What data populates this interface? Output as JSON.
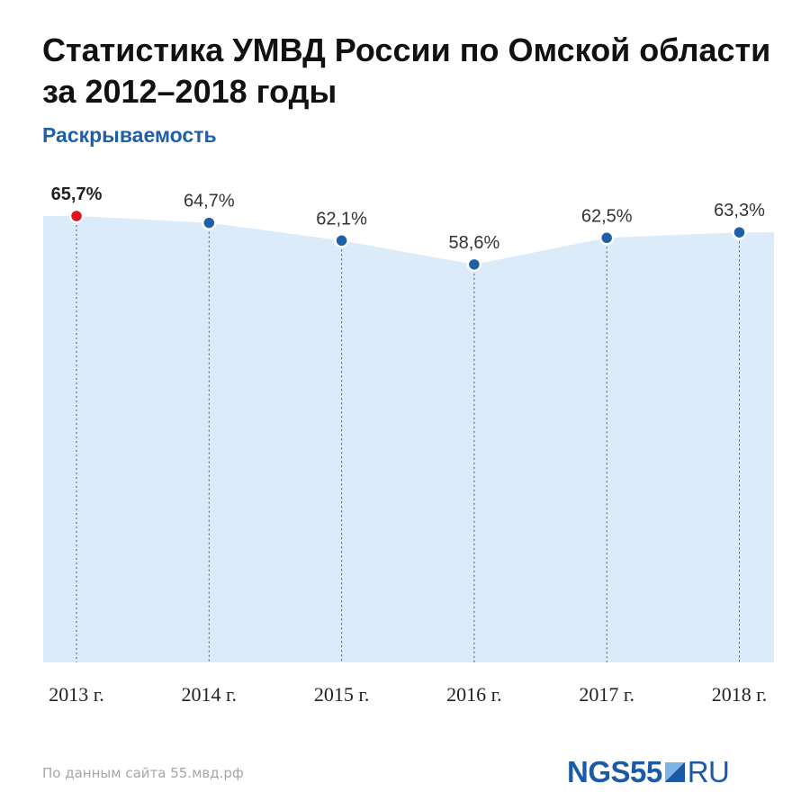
{
  "title": "Статистика УМВД России по Омской области за 2012–2018 годы",
  "subtitle": "Раскрываемость",
  "source": "По данным сайта 55.мвд.рф",
  "logo": {
    "brand": "NGS55",
    "domain": "RU"
  },
  "colors": {
    "area_fill": "#dcebfa",
    "point": "#1f5fa8",
    "highlight_point": "#e0141e",
    "guide": "#555555",
    "label": "#333333"
  },
  "chart_data": {
    "type": "area",
    "categories": [
      "2013 г.",
      "2014 г.",
      "2015 г.",
      "2016 г.",
      "2017 г.",
      "2018 г."
    ],
    "values": [
      65.7,
      64.7,
      62.1,
      58.6,
      62.5,
      63.3
    ],
    "data_labels": [
      "65,7%",
      "64,7%",
      "62,1%",
      "58,6%",
      "62,5%",
      "63,3%"
    ],
    "highlight_index": 0,
    "unit": "%",
    "grid": false,
    "legend": "none"
  }
}
